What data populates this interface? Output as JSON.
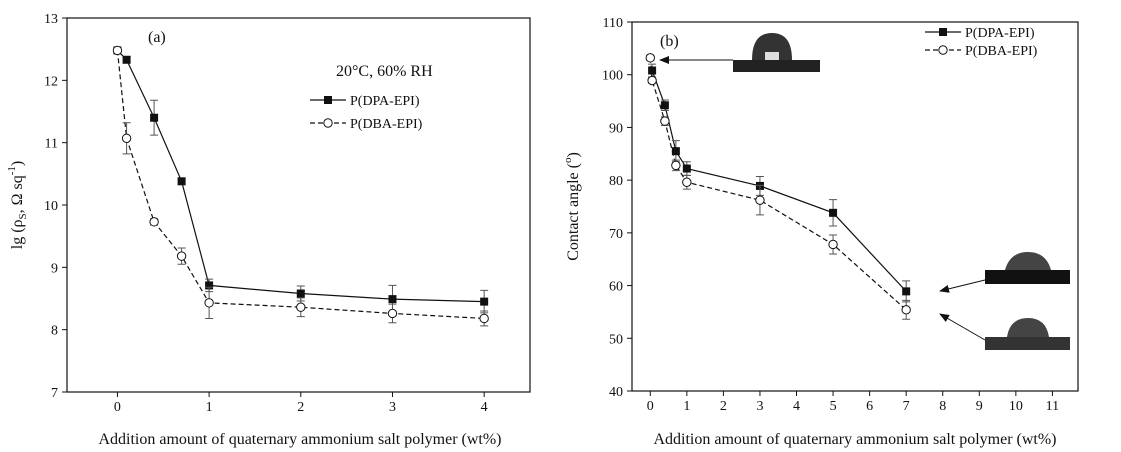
{
  "chart_data": [
    {
      "type": "line",
      "annotations": [
        "(a)",
        "20°C, 60% RH"
      ],
      "x_label": "Addition amount of quaternary ammonium salt polymer (wt%)",
      "y_label": [
        "lg (ρ",
        "S",
        ", Ω sq",
        "-1",
        ")"
      ],
      "xlim": [
        -0.55,
        4.5
      ],
      "xticks": [
        0,
        1,
        2,
        3,
        4
      ],
      "ylim": [
        7,
        13
      ],
      "yticks": [
        7,
        8,
        9,
        10,
        11,
        12,
        13
      ],
      "legend": "upper right",
      "series": [
        {
          "name": "P(DPA-EPI)",
          "color": "#111111",
          "marker": "filled-square",
          "dash": false,
          "x": [
            0,
            0.1,
            0.4,
            0.7,
            1,
            2,
            3,
            4
          ],
          "values": [
            12.48,
            12.33,
            11.4,
            10.38,
            8.71,
            8.58,
            8.49,
            8.45
          ],
          "errors": [
            0.05,
            0.05,
            0.28,
            0.05,
            0.1,
            0.12,
            0.22,
            0.18
          ]
        },
        {
          "name": "P(DBA-EPI)",
          "color": "#111111",
          "marker": "open-circle",
          "dash": true,
          "x": [
            0,
            0.1,
            0.4,
            0.7,
            1,
            2,
            3,
            4
          ],
          "values": [
            12.48,
            11.07,
            9.73,
            9.18,
            8.43,
            8.36,
            8.26,
            8.18
          ],
          "errors": [
            0.05,
            0.25,
            0.05,
            0.13,
            0.25,
            0.15,
            0.15,
            0.12
          ]
        }
      ]
    },
    {
      "type": "line",
      "annotations": [
        "(b)"
      ],
      "x_label": "Addition amount of quaternary ammonium salt polymer (wt%)",
      "y_label": [
        "Contact angle (",
        "o",
        ")"
      ],
      "xlim": [
        -0.5,
        11.7
      ],
      "xticks": [
        0,
        1,
        2,
        3,
        4,
        5,
        6,
        7,
        8,
        9,
        10,
        11
      ],
      "ylim": [
        40,
        110
      ],
      "yticks": [
        40,
        50,
        60,
        70,
        80,
        90,
        100,
        110
      ],
      "legend": "upper right",
      "series": [
        {
          "name": "P(DPA-EPI)",
          "color": "#111111",
          "marker": "filled-square",
          "dash": false,
          "x": [
            0.05,
            0.4,
            0.7,
            1,
            3,
            5,
            7
          ],
          "values": [
            100.8,
            94.2,
            85.5,
            82.2,
            78.9,
            73.8,
            58.9
          ],
          "errors": [
            1.2,
            1,
            2,
            1.3,
            1.8,
            2.5,
            2
          ]
        },
        {
          "name": "P(DBA-EPI)",
          "color": "#111111",
          "marker": "open-circle",
          "dash": true,
          "x": [
            0,
            0.05,
            0.4,
            0.7,
            1,
            3,
            5,
            7
          ],
          "values": [
            103.2,
            98.9,
            91.2,
            82.8,
            79.6,
            76.2,
            67.8,
            55.4
          ],
          "errors": [
            0.5,
            0.5,
            0.8,
            1,
            1.3,
            2.8,
            1.8,
            1.8
          ]
        }
      ]
    }
  ]
}
